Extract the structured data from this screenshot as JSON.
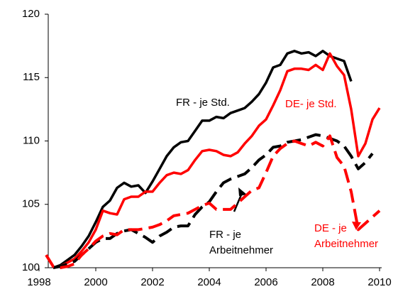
{
  "chart_data": {
    "type": "line",
    "x": [
      1998.25,
      1998.5,
      1998.75,
      1999,
      1999.25,
      1999.5,
      1999.75,
      2000,
      2000.25,
      2000.5,
      2000.75,
      2001,
      2001.25,
      2001.5,
      2001.75,
      2002,
      2002.25,
      2002.5,
      2002.75,
      2003,
      2003.25,
      2003.5,
      2003.75,
      2004,
      2004.25,
      2004.5,
      2004.75,
      2005,
      2005.25,
      2005.5,
      2005.75,
      2006,
      2006.25,
      2006.5,
      2006.75,
      2007,
      2007.25,
      2007.5,
      2007.75,
      2008,
      2008.25,
      2008.5,
      2008.75,
      2009,
      2009.25,
      2009.5,
      2009.75,
      2010
    ],
    "xlim": [
      1998.325,
      2010.075
    ],
    "xticks": [
      1998,
      2000,
      2002,
      2004,
      2006,
      2008,
      2010
    ],
    "ylim": [
      100,
      120
    ],
    "yticks": [
      100,
      105,
      110,
      115,
      120
    ],
    "series": [
      {
        "name": [
          "FR - je Std."
        ],
        "color": "#000000",
        "dashed": false,
        "values": [
          null,
          100,
          100.2,
          100.6,
          101.0,
          101.7,
          102.5,
          103.6,
          104.8,
          105.3,
          106.3,
          106.7,
          106.4,
          106.5,
          105.9,
          106.8,
          107.8,
          108.8,
          109.5,
          109.9,
          110.0,
          110.8,
          111.6,
          111.6,
          111.9,
          111.8,
          112.2,
          112.4,
          112.6,
          113.1,
          113.7,
          114.6,
          115.8,
          116.0,
          116.9,
          117.1,
          116.9,
          117.0,
          116.7,
          117.1,
          116.7,
          116.5,
          116.3,
          114.7,
          null,
          null,
          null,
          null
        ]
      },
      {
        "name": [
          "DE- je Std."
        ],
        "color": "#ff0000",
        "dashed": false,
        "values": [
          null,
          100,
          100.1,
          100.4,
          100.7,
          101.3,
          102.0,
          103.0,
          104.5,
          104.3,
          104.2,
          105.4,
          105.6,
          105.6,
          106.0,
          106.0,
          106.7,
          107.3,
          107.5,
          107.4,
          107.7,
          108.5,
          109.2,
          109.3,
          109.2,
          108.9,
          108.8,
          109.1,
          109.8,
          110.4,
          111.2,
          111.7,
          112.8,
          114.0,
          115.5,
          115.7,
          115.7,
          115.6,
          116.0,
          115.6,
          116.9,
          115.9,
          115.2,
          112.5,
          108.8,
          109.8,
          111.7,
          112.6
        ]
      },
      {
        "name": [
          "FR - je",
          "Arbeitnehmer"
        ],
        "color": "#000000",
        "dashed": true,
        "values": [
          null,
          100,
          100.1,
          100.3,
          100.5,
          101.0,
          101.5,
          102.0,
          102.3,
          102.3,
          102.7,
          102.9,
          103.0,
          102.7,
          102.4,
          102.0,
          102.5,
          102.8,
          103.2,
          103.3,
          103.3,
          104.2,
          104.8,
          105.2,
          106.0,
          106.7,
          107.0,
          107.2,
          107.4,
          107.9,
          108.5,
          108.9,
          109.5,
          109.6,
          109.9,
          110.0,
          110.1,
          110.3,
          110.5,
          110.4,
          110.2,
          110.0,
          109.6,
          108.8,
          107.8,
          108.3,
          109.0,
          null
        ]
      },
      {
        "name": [
          "DE - je",
          "Arbeitnehmer"
        ],
        "color": "#ff0000",
        "dashed": true,
        "values": [
          101.0,
          100.1,
          100.0,
          100.1,
          100.3,
          101.0,
          101.5,
          102.1,
          102.5,
          102.7,
          102.6,
          103.0,
          103.0,
          103.0,
          103.1,
          103.2,
          103.4,
          103.7,
          104.1,
          104.2,
          104.3,
          104.6,
          104.9,
          105.1,
          104.6,
          104.6,
          104.6,
          105.1,
          105.6,
          106.1,
          106.3,
          107.5,
          108.8,
          109.4,
          109.8,
          110.0,
          109.8,
          109.6,
          109.9,
          109.6,
          110.4,
          108.7,
          108.0,
          106.0,
          103.0,
          103.5,
          104.0,
          104.5
        ]
      }
    ]
  }
}
